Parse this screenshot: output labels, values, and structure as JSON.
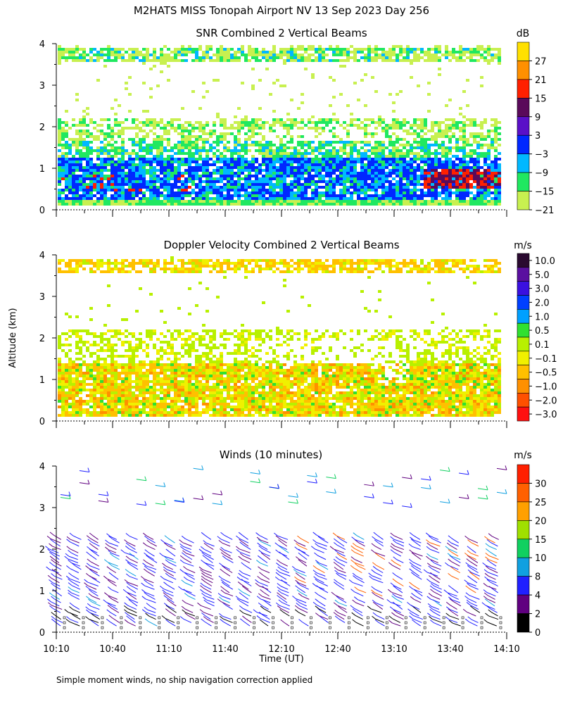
{
  "figure": {
    "title": "M2HATS MISS Tonopah Airport NV  13 Sep 2023 Day 256",
    "ylabel": "Altitude (km)",
    "xlabel": "Time (UT)",
    "footnote": "Simple moment winds, no ship navigation correction applied"
  },
  "chart_data": [
    {
      "type": "heatmap",
      "id": "snr",
      "title": "SNR Combined 2 Vertical Beams",
      "ylim": [
        0,
        4
      ],
      "yticks": [
        "0",
        "1",
        "2",
        "3",
        "4"
      ],
      "x_range_hours": [
        10.1667,
        14.1667
      ],
      "colorbar": {
        "unit": "dB",
        "labels": [
          "27",
          "21",
          "15",
          "9",
          "3",
          "−3",
          "−9",
          "−15",
          "−21"
        ],
        "colors": [
          "#ffe000",
          "#ff9000",
          "#ff2000",
          "#5a0a5a",
          "#5a10c8",
          "#0028ff",
          "#00b8ff",
          "#20e860",
          "#c8f050"
        ]
      }
    },
    {
      "type": "heatmap",
      "id": "doppler",
      "title": "Doppler Velocity Combined 2 Vertical Beams",
      "ylim": [
        0,
        4
      ],
      "yticks": [
        "0",
        "1",
        "2",
        "3",
        "4"
      ],
      "x_range_hours": [
        10.1667,
        14.1667
      ],
      "colorbar": {
        "unit": "m/s",
        "labels": [
          "10.0",
          "5.0",
          "3.0",
          "2.0",
          "1.0",
          "0.5",
          "0.1",
          "−0.1",
          "−0.5",
          "−1.0",
          "−2.0",
          "−3.0"
        ],
        "colors": [
          "#2a0a30",
          "#5a10a0",
          "#3a10e0",
          "#0040ff",
          "#00a0ff",
          "#30e030",
          "#b8f000",
          "#f0f000",
          "#ffc000",
          "#ff9000",
          "#ff5000",
          "#ff1010"
        ]
      }
    },
    {
      "type": "barbs",
      "id": "winds",
      "title": "Winds (10 minutes)",
      "ylim": [
        0,
        4
      ],
      "yticks": [
        "0",
        "1",
        "2",
        "3",
        "4"
      ],
      "x_range_hours": [
        10.1667,
        14.1667
      ],
      "xticks": [
        "10:10",
        "10:40",
        "11:10",
        "11:40",
        "12:10",
        "12:40",
        "13:10",
        "13:40",
        "14:10"
      ],
      "colorbar": {
        "unit": "m/s",
        "labels": [
          "30",
          "25",
          "20",
          "15",
          "10",
          "8",
          "4",
          "2",
          "0"
        ],
        "colors": [
          "#ff2000",
          "#ff6000",
          "#ffa000",
          "#a0e000",
          "#10d060",
          "#10a0e0",
          "#2020ff",
          "#600080",
          "#000000"
        ]
      }
    }
  ]
}
